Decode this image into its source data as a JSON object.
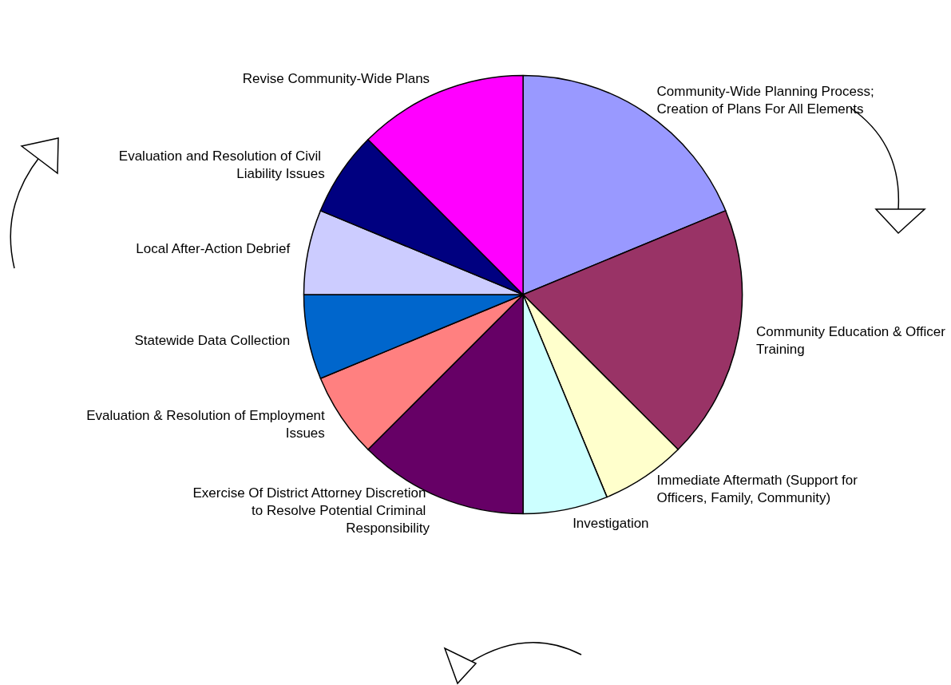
{
  "chart_data": {
    "type": "pie",
    "categories": [
      "Community-Wide Planning Process; Creation of Plans For All Elements",
      "Community Education & Officer Training",
      "Immediate Aftermath (Support for Officers, Family, Community)",
      "Investigation",
      "Exercise Of District Attorney Discretion to Resolve Potential Criminal Responsibility",
      "Evaluation & Resolution of Employment Issues",
      "Statewide Data Collection",
      "Local After-Action Debrief",
      "Evaluation and Resolution of Civil Liability Issues",
      "Revise Community-Wide Plans"
    ],
    "values": [
      18.75,
      18.75,
      6.25,
      6.25,
      12.5,
      6.25,
      6.25,
      6.25,
      6.25,
      12.5
    ],
    "colors": [
      "#9999ff",
      "#993366",
      "#ffffcc",
      "#ccffff",
      "#660066",
      "#ff8080",
      "#0066cc",
      "#ccccff",
      "#000080",
      "#ff00ff"
    ],
    "legend": false
  }
}
